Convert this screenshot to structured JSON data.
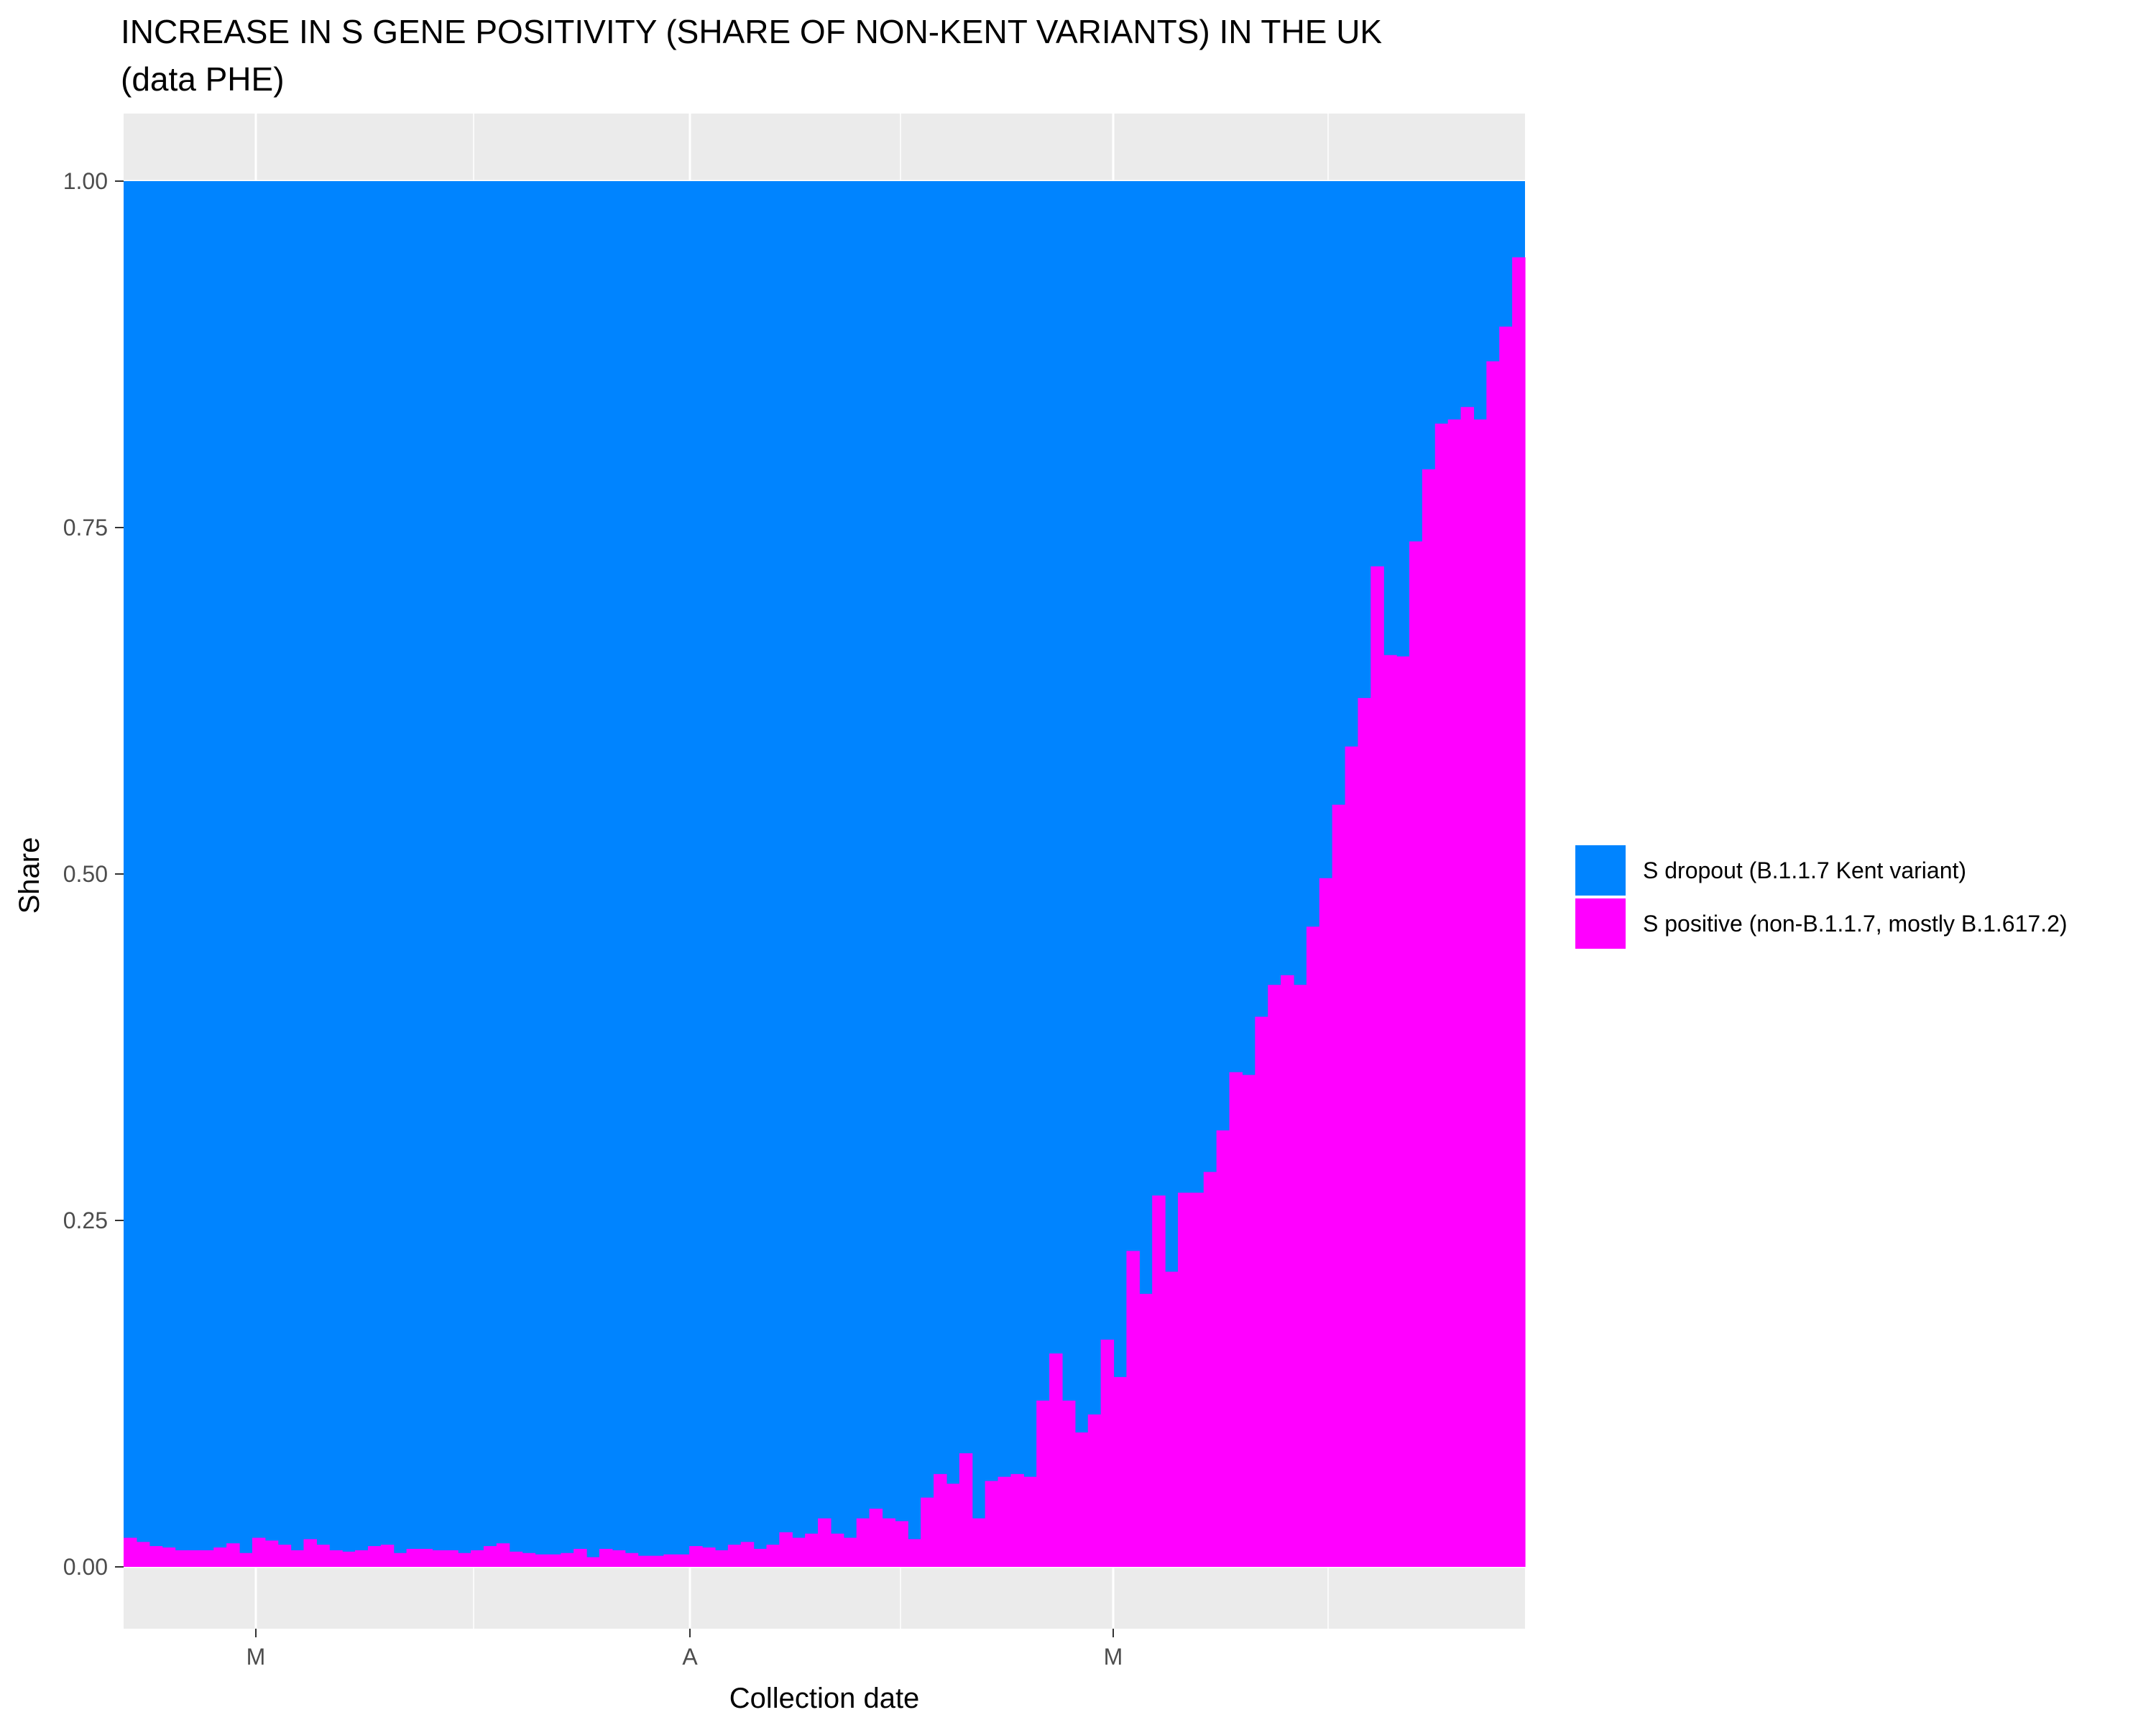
{
  "chart_data": {
    "type": "bar",
    "stacked": true,
    "percent_stacked": true,
    "title": "INCREASE IN S GENE POSITIVITY (SHARE OF NON-KENT VARIANTS) IN THE UK",
    "subtitle": "(data PHE)",
    "xlabel": "Collection date",
    "ylabel": "Share",
    "ylim": [
      0,
      1
    ],
    "y_ticks": [
      "0.00",
      "0.25",
      "0.50",
      "0.75",
      "1.00"
    ],
    "x_ticks": [
      "M",
      "A",
      "M"
    ],
    "grid": true,
    "legend_position": "right",
    "colors": {
      "s_dropout": "#0084FF",
      "s_positive": "#FF00FF",
      "panel": "#EBEBEB",
      "grid": "#FFFFFF"
    },
    "series": [
      {
        "name": "S dropout (B.1.1.7 Kent variant)",
        "color": "#0084FF",
        "note_value": "1 - S positive share"
      },
      {
        "name": "S positive (non-B.1.1.7, mostly B.1.617.2)",
        "color": "#FF00FF"
      }
    ],
    "s_positive_share": [
      0.021,
      0.018,
      0.015,
      0.014,
      0.012,
      0.012,
      0.012,
      0.014,
      0.017,
      0.01,
      0.021,
      0.019,
      0.016,
      0.012,
      0.02,
      0.016,
      0.012,
      0.011,
      0.012,
      0.015,
      0.016,
      0.01,
      0.013,
      0.013,
      0.012,
      0.012,
      0.01,
      0.012,
      0.015,
      0.017,
      0.011,
      0.01,
      0.009,
      0.009,
      0.01,
      0.013,
      0.007,
      0.013,
      0.012,
      0.01,
      0.008,
      0.008,
      0.009,
      0.009,
      0.015,
      0.014,
      0.012,
      0.016,
      0.018,
      0.013,
      0.016,
      0.025,
      0.021,
      0.024,
      0.035,
      0.024,
      0.021,
      0.035,
      0.042,
      0.035,
      0.033,
      0.02,
      0.05,
      0.067,
      0.06,
      0.082,
      0.035,
      0.062,
      0.065,
      0.067,
      0.065,
      0.12,
      0.154,
      0.12,
      0.097,
      0.11,
      0.164,
      0.137,
      0.228,
      0.197,
      0.268,
      0.213,
      0.27,
      0.27,
      0.285,
      0.315,
      0.357,
      0.355,
      0.397,
      0.42,
      0.427,
      0.42,
      0.462,
      0.497,
      0.55,
      0.592,
      0.627,
      0.722,
      0.658,
      0.657,
      0.74,
      0.792,
      0.825,
      0.828,
      0.837,
      0.828,
      0.87,
      0.895,
      0.945
    ]
  }
}
